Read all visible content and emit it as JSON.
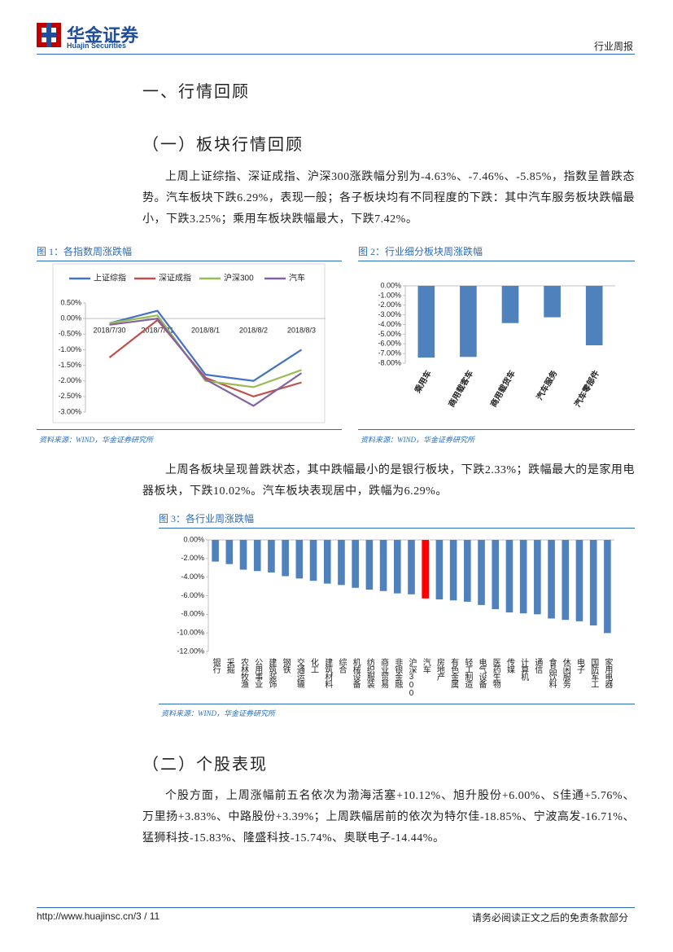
{
  "header": {
    "logo": "华金证券",
    "logo_en": "Huajin Securities",
    "report_type": "行业周报"
  },
  "section1": {
    "title": "一、行情回顾",
    "sub1": "（一）板块行情回顾",
    "p1": "上周上证综指、深证成指、沪深300涨跌幅分别为-4.63%、-7.46%、-5.85%，指数呈普跌态势。汽车板块下跌6.29%，表现一般；各子板块均有不同程度的下跌：其中汽车服务板块跌幅最小，下跌3.25%；乘用车板块跌幅最大，下跌7.42%。",
    "p2": "上周各板块呈现普跌状态，其中跌幅最小的是银行板块，下跌2.33%；跌幅最大的是家用电器板块，下跌10.02%。汽车板块表现居中，跌幅为6.29%。",
    "sub2": "（二）个股表现",
    "p3": "个股方面，上周涨幅前五名依次为渤海活塞+10.12%、旭升股份+6.00%、S佳通+5.76%、万里扬+3.83%、中路股份+3.39%；上周跌幅居前的依次为特尔佳-18.85%、宁波高发-16.71%、猛狮科技-15.83%、隆盛科技-15.74%、奥联电子-14.44%。"
  },
  "footer": {
    "url": "http://www.huajinsc.cn/3 / 11",
    "notice": "请务必阅读正文之后的免责条款部分"
  },
  "chart_data": [
    {
      "type": "line",
      "title": "图 1：各指数周涨跌幅",
      "source": "资料来源：WIND，华金证券研究所",
      "categories": [
        "2018/7/30",
        "2018/7/31",
        "2018/8/1",
        "2018/8/2",
        "2018/8/3"
      ],
      "series": [
        {
          "name": "上证综指",
          "color": "#4472c4",
          "values": [
            -0.15,
            0.25,
            -1.8,
            -2.0,
            -1.0
          ]
        },
        {
          "name": "深证成指",
          "color": "#c0504d",
          "values": [
            -1.25,
            -0.05,
            -1.9,
            -2.5,
            -2.05
          ]
        },
        {
          "name": "沪深300",
          "color": "#9bbb59",
          "values": [
            -0.15,
            0.1,
            -2.0,
            -2.2,
            -1.65
          ]
        },
        {
          "name": "汽车",
          "color": "#8064a2",
          "values": [
            -0.2,
            0.0,
            -1.95,
            -2.8,
            -1.75
          ]
        }
      ],
      "ylim": [
        -3.0,
        0.5
      ],
      "yticks": [
        {
          "value": 0.5,
          "label": "0.50%"
        },
        {
          "value": 0,
          "label": "0.00%"
        },
        {
          "value": -0.5,
          "label": "-0.50%"
        },
        {
          "value": -1,
          "label": "-1.00%"
        },
        {
          "value": -1.5,
          "label": "-1.50%"
        },
        {
          "value": -2,
          "label": "-2.00%"
        },
        {
          "value": -2.5,
          "label": "-2.50%"
        },
        {
          "value": -3,
          "label": "-3.00%"
        }
      ],
      "legend": "top"
    },
    {
      "type": "bar",
      "title": "图 2：行业细分板块周涨跌幅",
      "source": "资料来源：WIND，华金证券研究所",
      "categories": [
        "乘用车",
        "商用载客车",
        "商用载货车",
        "汽车服务",
        "汽车零部件"
      ],
      "values": [
        -7.42,
        -7.35,
        -3.85,
        -3.25,
        -6.15
      ],
      "color": "#4f81bd",
      "ylim": [
        -8,
        0
      ],
      "yticks": [
        {
          "value": 0,
          "label": "0.00%"
        },
        {
          "value": -1,
          "label": "-1.00%"
        },
        {
          "value": -2,
          "label": "-2.00%"
        },
        {
          "value": -3,
          "label": "-3.00%"
        },
        {
          "value": -4,
          "label": "-4.00%"
        },
        {
          "value": -5,
          "label": "-5.00%"
        },
        {
          "value": -6,
          "label": "-6.00%"
        },
        {
          "value": -7,
          "label": "-7.00%"
        },
        {
          "value": -8,
          "label": "-8.00%"
        }
      ],
      "label_rotation": -60
    },
    {
      "type": "bar",
      "title": "图 3：各行业周涨跌幅",
      "source": "资料来源：WIND，华金证券研究所",
      "categories": [
        "银行",
        "采掘",
        "农林牧渔",
        "公用事业",
        "建筑装饰",
        "钢铁",
        "交通运输",
        "化工",
        "建筑材料",
        "综合",
        "机械设备",
        "纺织服装",
        "商业贸易",
        "非银金融",
        "沪深300",
        "汽车",
        "房地产",
        "有色金属",
        "轻工制造",
        "电气设备",
        "医药生物",
        "传媒",
        "计算机",
        "通信",
        "食品饮料",
        "休闲服务",
        "电子",
        "国防军工",
        "家用电器"
      ],
      "values": [
        -2.33,
        -2.6,
        -3.2,
        -3.35,
        -3.5,
        -3.9,
        -4.15,
        -4.4,
        -4.7,
        -4.85,
        -5.15,
        -5.35,
        -5.5,
        -5.75,
        -5.85,
        -6.29,
        -6.4,
        -6.5,
        -6.65,
        -7.0,
        -7.45,
        -7.8,
        -7.9,
        -8.0,
        -8.45,
        -8.6,
        -8.75,
        -9.2,
        -10.02
      ],
      "colors": [
        "#4f81bd",
        "#4f81bd",
        "#4f81bd",
        "#4f81bd",
        "#4f81bd",
        "#4f81bd",
        "#4f81bd",
        "#4f81bd",
        "#4f81bd",
        "#4f81bd",
        "#4f81bd",
        "#4f81bd",
        "#4f81bd",
        "#4f81bd",
        "#4f81bd",
        "#ff0000",
        "#4f81bd",
        "#4f81bd",
        "#4f81bd",
        "#4f81bd",
        "#4f81bd",
        "#4f81bd",
        "#4f81bd",
        "#4f81bd",
        "#4f81bd",
        "#4f81bd",
        "#4f81bd",
        "#4f81bd",
        "#4f81bd"
      ],
      "ylim": [
        -12,
        0
      ],
      "yticks": [
        {
          "value": 0,
          "label": "0.00%"
        },
        {
          "value": -2,
          "label": "-2.00%"
        },
        {
          "value": -4,
          "label": "-4.00%"
        },
        {
          "value": -6,
          "label": "-6.00%"
        },
        {
          "value": -8,
          "label": "-8.00%"
        },
        {
          "value": -10,
          "label": "-10.00%"
        },
        {
          "value": -12,
          "label": "-12.00%"
        }
      ],
      "label_orientation": "vertical"
    }
  ]
}
